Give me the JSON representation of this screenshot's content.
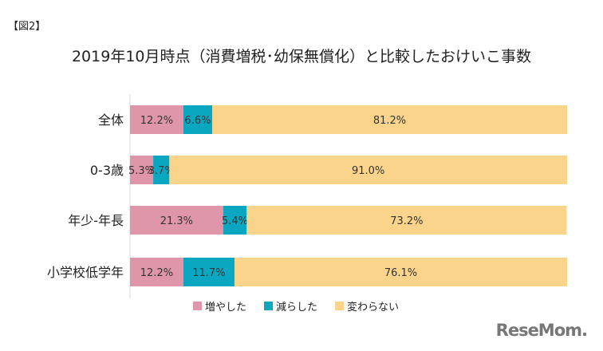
{
  "figure_label": "【図2】",
  "logo": "ReseMom",
  "chart_data": {
    "type": "bar",
    "orientation": "horizontal",
    "stacked": true,
    "title": "2019年10月時点（消費増税･幼保無償化）と比較したおけいこ事数",
    "categories": [
      "全体",
      "0-3歳",
      "年少-年長",
      "小学校低学年"
    ],
    "series": [
      {
        "name": "増やした",
        "color": "#e096aa",
        "values": [
          12.2,
          5.3,
          21.3,
          12.2
        ]
      },
      {
        "name": "減らした",
        "color": "#0ba7c1",
        "values": [
          6.6,
          3.7,
          5.4,
          11.7
        ]
      },
      {
        "name": "変わらない",
        "color": "#fad48a",
        "values": [
          81.2,
          91.0,
          73.2,
          76.1
        ]
      }
    ],
    "xlim": [
      0,
      100
    ],
    "value_format": "%",
    "grid": false,
    "legend_position": "bottom"
  }
}
